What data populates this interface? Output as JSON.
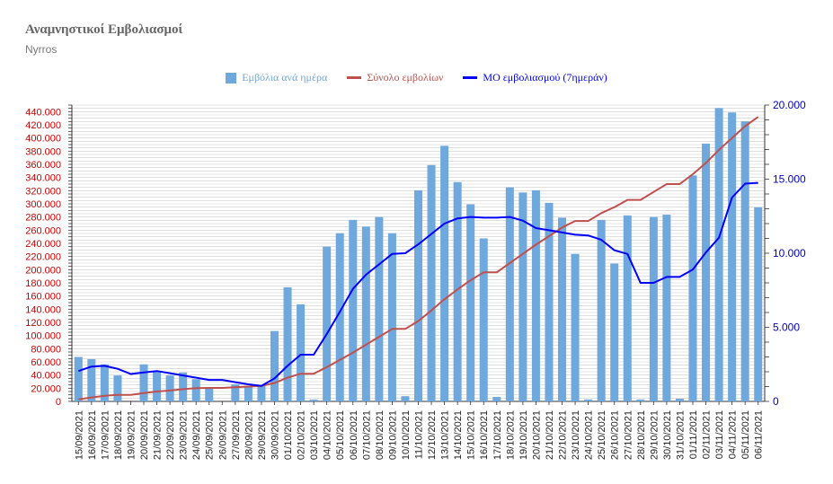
{
  "title": "Αναμνηστικοί Εμβολιασμοί",
  "subtitle": "Nyrros",
  "colors": {
    "bar": "#6fa8dc",
    "total_line": "#c0504d",
    "avg_line": "#0000ff",
    "left_axis_text": "#cc0000",
    "right_axis_text": "#0000cc",
    "grid": "#cccccc"
  },
  "legend": [
    {
      "label": "Εμβόλια ανά ημέρα",
      "color": "#6fa8dc",
      "kind": "bar"
    },
    {
      "label": "Σύνολο εμβολίων",
      "color": "#c0504d",
      "kind": "line"
    },
    {
      "label": "ΜΟ εμβολιασμού (7ημεράν)",
      "color": "#0000ff",
      "kind": "line"
    }
  ],
  "chart_data": {
    "type": "bar",
    "title": "Αναμνηστικοί Εμβολιασμοί",
    "subtitle": "Nyrros",
    "legend_position": "top",
    "grid": true,
    "categories": [
      "15/09/2021",
      "16/09/2021",
      "17/09/2021",
      "18/09/2021",
      "19/09/2021",
      "20/09/2021",
      "21/09/2021",
      "22/09/2021",
      "23/09/2021",
      "24/09/2021",
      "25/09/2021",
      "26/09/2021",
      "27/09/2021",
      "28/09/2021",
      "29/09/2021",
      "30/09/2021",
      "01/10/2021",
      "02/10/2021",
      "03/10/2021",
      "04/10/2021",
      "05/10/2021",
      "06/10/2021",
      "07/10/2021",
      "08/10/2021",
      "09/10/2021",
      "10/10/2021",
      "11/10/2021",
      "12/10/2021",
      "13/10/2021",
      "14/10/2021",
      "15/10/2021",
      "16/10/2021",
      "17/10/2021",
      "18/10/2021",
      "19/10/2021",
      "20/10/2021",
      "21/10/2021",
      "22/10/2021",
      "23/10/2021",
      "24/10/2021",
      "25/10/2021",
      "26/10/2021",
      "27/10/2021",
      "28/10/2021",
      "29/10/2021",
      "30/10/2021",
      "31/10/2021",
      "01/11/2021",
      "02/11/2021",
      "03/11/2021",
      "04/11/2021",
      "05/11/2021",
      "06/11/2021"
    ],
    "y_left": {
      "ticks": [
        "0",
        "20.000",
        "40.000",
        "60.000",
        "80.000",
        "100.000",
        "120.000",
        "140.000",
        "160.000",
        "180.000",
        "200.000",
        "220.000",
        "240.000",
        "260.000",
        "280.000",
        "300.000",
        "320.000",
        "340.000",
        "360.000",
        "380.000",
        "400.000",
        "420.000",
        "440.000"
      ],
      "ylim": [
        0,
        450000
      ]
    },
    "y_right": {
      "ticks": [
        "0",
        "5.000",
        "10.000",
        "15.000",
        "20.000"
      ],
      "ylim": [
        0,
        20000
      ]
    },
    "series": [
      {
        "name": "Εμβόλια ανά ημέρα",
        "kind": "bar",
        "axis": "right",
        "values": [
          3000,
          2850,
          2500,
          1750,
          0,
          2500,
          2050,
          1750,
          1950,
          1500,
          850,
          0,
          1150,
          1000,
          1050,
          4750,
          7700,
          6550,
          120,
          10450,
          11350,
          12250,
          11800,
          12450,
          11350,
          350,
          14250,
          15950,
          17250,
          14800,
          13300,
          11000,
          300,
          14450,
          14100,
          14250,
          13400,
          12400,
          9950,
          130,
          12250,
          9300,
          12550,
          130,
          12450,
          12600,
          180,
          15250,
          17400,
          19800,
          19500,
          18900,
          13100
        ]
      },
      {
        "name": "Σύνολο εμβολίων",
        "kind": "line",
        "axis": "left",
        "values": [
          3000,
          6000,
          8500,
          10000,
          10000,
          12500,
          15000,
          16500,
          18500,
          20000,
          20500,
          20500,
          21500,
          22500,
          23500,
          28000,
          36000,
          42000,
          42000,
          52000,
          63000,
          74000,
          86000,
          98000,
          110000,
          110000,
          122000,
          138000,
          155000,
          170000,
          184000,
          196000,
          196000,
          210000,
          224000,
          238000,
          251000,
          264000,
          274000,
          274000,
          286000,
          295000,
          306000,
          306000,
          318000,
          330000,
          330000,
          345000,
          362000,
          382000,
          400000,
          418000,
          432000
        ]
      },
      {
        "name": "ΜΟ εμβολιασμού (7ημεράν)",
        "kind": "line",
        "axis": "right",
        "values": [
          2050,
          2350,
          2400,
          2200,
          1850,
          1950,
          2050,
          1900,
          1750,
          1600,
          1450,
          1450,
          1300,
          1150,
          1050,
          1550,
          2400,
          3150,
          3150,
          4550,
          6050,
          7600,
          8550,
          9250,
          9950,
          10000,
          10600,
          11300,
          12000,
          12350,
          12450,
          12400,
          12400,
          12450,
          12200,
          11700,
          11550,
          11400,
          11250,
          11200,
          10900,
          10200,
          9950,
          8000,
          8000,
          8400,
          8400,
          8900,
          10050,
          11050,
          13750,
          14700,
          14750
        ]
      }
    ]
  }
}
